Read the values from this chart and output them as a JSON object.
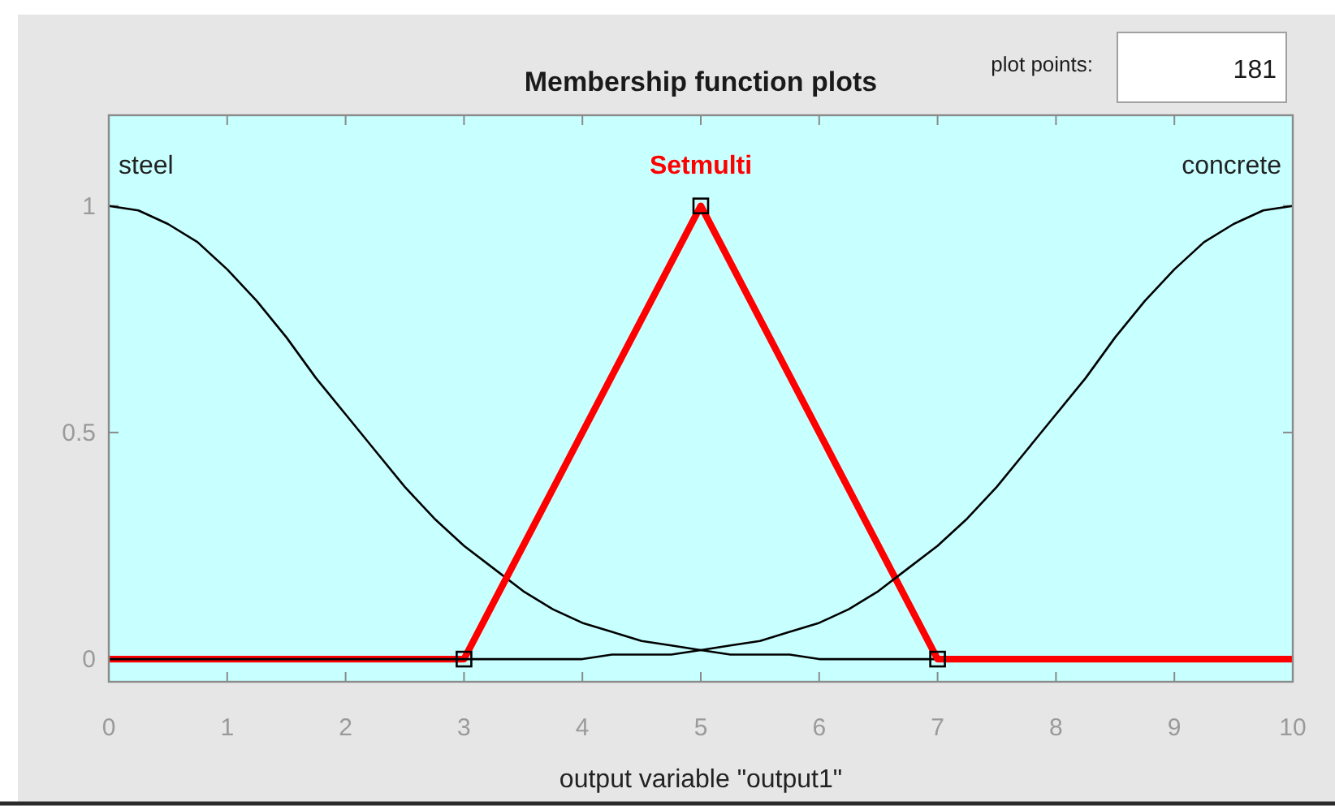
{
  "chart_data": {
    "type": "line",
    "title": "Membership function plots",
    "xlabel": "output variable \"output1\"",
    "annotations": [
      "plot points:",
      "181"
    ],
    "xlim": [
      0,
      10
    ],
    "ylim": [
      -0.05,
      1.2
    ],
    "xticks": [
      0,
      1,
      2,
      3,
      4,
      5,
      6,
      7,
      8,
      9,
      10
    ],
    "yticks": [
      0,
      0.5,
      1
    ],
    "series": [
      {
        "name": "steel",
        "color": "#000000",
        "x": [
          0,
          0.25,
          0.5,
          0.75,
          1,
          1.25,
          1.5,
          1.75,
          2,
          2.25,
          2.5,
          2.75,
          3,
          3.25,
          3.5,
          3.75,
          4,
          4.25,
          4.5,
          4.75,
          5,
          5.25,
          5.5,
          5.75,
          6,
          6.25,
          6.5,
          6.75,
          7,
          7.25,
          7.5,
          7.75,
          8,
          8.25,
          8.5,
          8.75,
          9,
          9.25,
          9.5,
          9.75,
          10
        ],
        "values": [
          1,
          0.99,
          0.96,
          0.92,
          0.86,
          0.79,
          0.71,
          0.62,
          0.54,
          0.46,
          0.38,
          0.31,
          0.25,
          0.2,
          0.15,
          0.11,
          0.08,
          0.06,
          0.04,
          0.03,
          0.02,
          0.01,
          0.01,
          0.01,
          0,
          0,
          0,
          0,
          0,
          0,
          0,
          0,
          0,
          0,
          0,
          0,
          0,
          0,
          0,
          0,
          0
        ]
      },
      {
        "name": "Setmulti",
        "color": "#ff0000",
        "x": [
          0,
          3,
          5,
          7,
          10
        ],
        "values": [
          0,
          0,
          1,
          0,
          0
        ]
      },
      {
        "name": "concrete",
        "color": "#000000",
        "x": [
          0,
          0.25,
          0.5,
          0.75,
          1,
          1.25,
          1.5,
          1.75,
          2,
          2.25,
          2.5,
          2.75,
          3,
          3.25,
          3.5,
          3.75,
          4,
          4.25,
          4.5,
          4.75,
          5,
          5.25,
          5.5,
          5.75,
          6,
          6.25,
          6.5,
          6.75,
          7,
          7.25,
          7.5,
          7.75,
          8,
          8.25,
          8.5,
          8.75,
          9,
          9.25,
          9.5,
          9.75,
          10
        ],
        "values": [
          0,
          0,
          0,
          0,
          0,
          0,
          0,
          0,
          0,
          0,
          0,
          0,
          0,
          0,
          0,
          0,
          0,
          0.01,
          0.01,
          0.01,
          0.02,
          0.03,
          0.04,
          0.06,
          0.08,
          0.11,
          0.15,
          0.2,
          0.25,
          0.31,
          0.38,
          0.46,
          0.54,
          0.62,
          0.71,
          0.79,
          0.86,
          0.92,
          0.96,
          0.99,
          1
        ]
      },
      {
        "type": "scatter",
        "color": "#000000",
        "marker": "square",
        "x": [
          3,
          5,
          7
        ],
        "values": [
          0,
          1,
          0
        ]
      }
    ]
  }
}
